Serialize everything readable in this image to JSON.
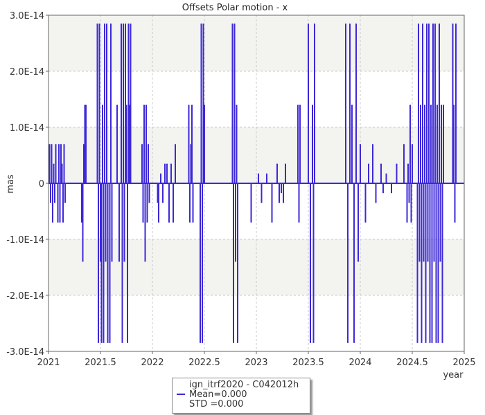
{
  "chart_data": {
    "type": "bar",
    "title": "Offsets Polar motion - x",
    "xlabel": "year",
    "ylabel": "mas",
    "xlim": [
      2021,
      2025
    ],
    "ylim": [
      -3e-14,
      3e-14
    ],
    "x_ticks": [
      "2021",
      "2021.5",
      "2022",
      "2022.5",
      "2023",
      "2023.5",
      "2024",
      "2024.5",
      "2025"
    ],
    "y_ticks": [
      "3.0E-14",
      "2.0E-14",
      "1.0E-14",
      "0",
      "-1.0E-14",
      "-2.0E-14",
      "-3.0E-14"
    ],
    "grid": true,
    "legend_placement": "bottom-center",
    "color": "#3c28d8",
    "series": [
      {
        "name": "ign_itrf2020 - C042012h",
        "mean_label": "Mean=0.000",
        "std_label": "STD =0.000",
        "x": [
          2021.01,
          2021.02,
          2021.03,
          2021.04,
          2021.05,
          2021.06,
          2021.07,
          2021.08,
          2021.09,
          2021.1,
          2021.11,
          2021.12,
          2021.13,
          2021.14,
          2021.15,
          2021.16,
          2021.32,
          2021.33,
          2021.34,
          2021.35,
          2021.36,
          2021.47,
          2021.48,
          2021.49,
          2021.5,
          2021.51,
          2021.52,
          2021.53,
          2021.54,
          2021.55,
          2021.56,
          2021.57,
          2021.58,
          2021.59,
          2021.6,
          2021.61,
          2021.66,
          2021.68,
          2021.7,
          2021.71,
          2021.72,
          2021.73,
          2021.74,
          2021.75,
          2021.76,
          2021.77,
          2021.78,
          2021.79,
          2021.9,
          2021.91,
          2021.92,
          2021.93,
          2021.94,
          2021.95,
          2021.96,
          2021.97,
          2022.05,
          2022.06,
          2022.08,
          2022.1,
          2022.12,
          2022.14,
          2022.16,
          2022.18,
          2022.2,
          2022.22,
          2022.35,
          2022.36,
          2022.37,
          2022.38,
          2022.39,
          2022.46,
          2022.47,
          2022.48,
          2022.49,
          2022.5,
          2022.77,
          2022.78,
          2022.79,
          2022.8,
          2022.81,
          2022.82,
          2022.95,
          2023.02,
          2023.05,
          2023.1,
          2023.15,
          2023.2,
          2023.22,
          2023.24,
          2023.26,
          2023.28,
          2023.4,
          2023.41,
          2023.42,
          2023.5,
          2023.52,
          2023.54,
          2023.55,
          2023.56,
          2023.86,
          2023.88,
          2023.9,
          2023.92,
          2023.94,
          2023.96,
          2023.98,
          2024.0,
          2024.05,
          2024.08,
          2024.12,
          2024.15,
          2024.2,
          2024.22,
          2024.25,
          2024.3,
          2024.35,
          2024.42,
          2024.45,
          2024.46,
          2024.47,
          2024.48,
          2024.49,
          2024.5,
          2024.55,
          2024.56,
          2024.57,
          2024.58,
          2024.59,
          2024.6,
          2024.61,
          2024.62,
          2024.63,
          2024.64,
          2024.65,
          2024.66,
          2024.67,
          2024.68,
          2024.69,
          2024.7,
          2024.71,
          2024.72,
          2024.73,
          2024.74,
          2024.75,
          2024.76,
          2024.77,
          2024.78,
          2024.79,
          2024.8,
          2024.89,
          2024.9,
          2024.91,
          2024.92
        ],
        "y": [
          7e-15,
          -3.5e-15,
          7e-15,
          -7e-15,
          3.5e-15,
          -3.5e-15,
          7e-15,
          0,
          -7e-15,
          7e-15,
          -7e-15,
          7e-15,
          3.5e-15,
          -7e-15,
          7e-15,
          -3.5e-15,
          -7e-15,
          -1.4e-14,
          7e-15,
          1.4e-14,
          1.4e-14,
          2.85e-14,
          -2.85e-14,
          2.85e-14,
          -1.4e-14,
          -2.85e-14,
          1.4e-14,
          -2.85e-14,
          2.85e-14,
          -1.4e-14,
          2.85e-14,
          -2.85e-14,
          0,
          -2.85e-14,
          2.85e-14,
          -1.4e-14,
          1.4e-14,
          -1.4e-14,
          2.85e-14,
          -2.85e-14,
          2.85e-14,
          -1.4e-14,
          2.85e-14,
          1.4e-14,
          -2.85e-14,
          2.85e-14,
          1.4e-14,
          2.85e-14,
          7e-15,
          -7e-15,
          1.4e-14,
          -1.4e-14,
          1.4e-14,
          -7e-15,
          7e-15,
          -3.5e-15,
          -3.5e-15,
          -7e-15,
          1.75e-15,
          -3.5e-15,
          3.5e-15,
          3.5e-15,
          -7e-15,
          3.5e-15,
          -7e-15,
          7e-15,
          1.4e-14,
          -7e-15,
          7e-15,
          1.4e-14,
          -7e-15,
          -2.85e-14,
          2.85e-14,
          -2.85e-14,
          2.85e-14,
          1.4e-14,
          2.85e-14,
          -2.85e-14,
          2.85e-14,
          -1.4e-14,
          1.4e-14,
          -2.85e-14,
          -7e-15,
          1.75e-15,
          -3.5e-15,
          1.75e-15,
          -7e-15,
          3.5e-15,
          -3.5e-15,
          -1.75e-15,
          -3.5e-15,
          3.5e-15,
          1.4e-14,
          -7e-15,
          1.4e-14,
          2.85e-14,
          -2.85e-14,
          1.4e-14,
          -2.85e-14,
          2.85e-14,
          2.85e-14,
          -2.85e-14,
          2.85e-14,
          1.4e-14,
          -2.85e-14,
          2.85e-14,
          -1.4e-14,
          7e-15,
          -7e-15,
          3.5e-15,
          7e-15,
          -3.5e-15,
          3.5e-15,
          -1.75e-15,
          1.75e-15,
          -1.75e-15,
          3.5e-15,
          7e-15,
          -7e-15,
          3.5e-15,
          -3.5e-15,
          1.4e-14,
          -7e-15,
          7e-15,
          -2.85e-14,
          2.85e-14,
          -1.4e-14,
          1.4e-14,
          -2.85e-14,
          2.85e-14,
          -1.4e-14,
          1.4e-14,
          -2.85e-14,
          2.85e-14,
          -1.4e-14,
          2.85e-14,
          -2.85e-14,
          1.4e-14,
          -2.85e-14,
          2.85e-14,
          -1.4e-14,
          2.85e-14,
          -2.85e-14,
          1.4e-14,
          -2.85e-14,
          2.85e-14,
          -1.4e-14,
          1.4e-14,
          -2.85e-14,
          1.4e-14,
          2.85e-14,
          1.4e-14,
          -7e-15,
          2.85e-14
        ]
      }
    ]
  }
}
